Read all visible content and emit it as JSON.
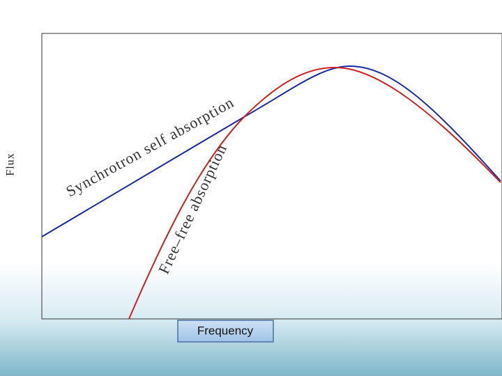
{
  "axes": {
    "y_label": "Flux",
    "x_label": "Frequency"
  },
  "curves": [
    {
      "label": "Synchrotron self absorption"
    },
    {
      "label": "Free–free absorption"
    }
  ]
}
